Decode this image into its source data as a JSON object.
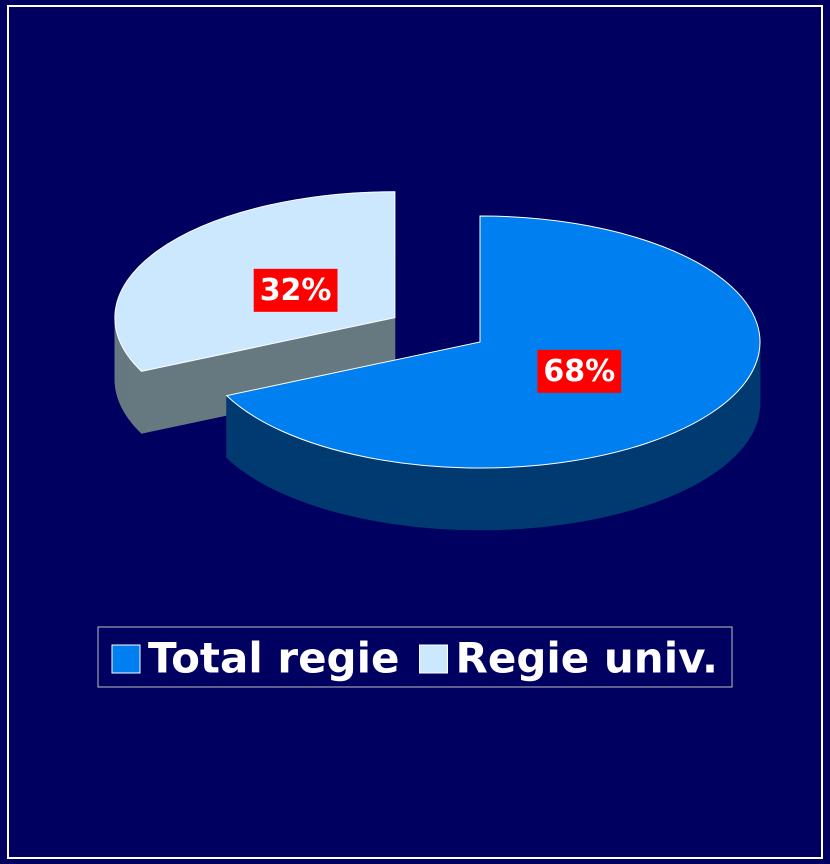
{
  "chart_data": {
    "type": "pie",
    "categories": [
      "Total regie",
      "Regie univ."
    ],
    "values": [
      68,
      32
    ],
    "value_labels": [
      "68%",
      "32%"
    ],
    "colors": [
      "#0080f0",
      "#cce8ff"
    ],
    "side_colors": [
      "#003a70",
      "#667880"
    ],
    "exploded": [
      false,
      true
    ],
    "legend": "bottom"
  }
}
